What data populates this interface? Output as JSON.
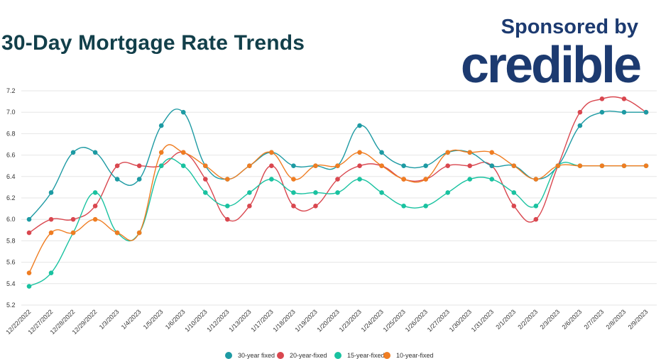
{
  "header": {
    "title": "30-Day Mortgage Rate Trends",
    "sponsor_text": "Sponsored by",
    "brand_name": "credible"
  },
  "colors": {
    "title": "#123f4a",
    "brand": "#1c3a70",
    "grid": "#e6e6e6"
  },
  "chart_data": {
    "type": "line",
    "smooth": true,
    "grid": "horizontal",
    "legend_position": "bottom",
    "categories": [
      "12/22/2022",
      "12/27/2022",
      "12/28/2022",
      "12/29/2022",
      "1/3/2023",
      "1/4/2023",
      "1/5/2023",
      "1/6/2023",
      "1/10/2023",
      "1/12/2023",
      "1/13/2023",
      "1/17/2023",
      "1/18/2023",
      "1/19/2023",
      "1/20/2023",
      "1/23/2023",
      "1/24/2023",
      "1/25/2023",
      "1/26/2023",
      "1/27/2023",
      "1/30/2023",
      "1/31/2023",
      "2/1/2023",
      "2/2/2023",
      "2/3/2023",
      "2/6/2023",
      "2/7/2023",
      "2/8/2023",
      "2/9/2023"
    ],
    "ylim": [
      5.2,
      7.2
    ],
    "yticks": [
      "7.2",
      "7.0",
      "6.8",
      "6.6",
      "6.4",
      "6.2",
      "6.0",
      "5.8",
      "5.6",
      "5.4",
      "5.2"
    ],
    "series": [
      {
        "name": "30-year fixed",
        "color": "#1d9aa3",
        "values": [
          6.0,
          6.25,
          6.625,
          6.625,
          6.375,
          6.375,
          6.875,
          7.0,
          6.5,
          6.375,
          6.5,
          6.625,
          6.5,
          6.5,
          6.5,
          6.875,
          6.625,
          6.5,
          6.5,
          6.625,
          6.625,
          6.5,
          6.5,
          6.375,
          6.5,
          6.875,
          7.0,
          7.0,
          7.0
        ]
      },
      {
        "name": "20-year-fixed",
        "color": "#d9474f",
        "values": [
          5.875,
          6.0,
          6.0,
          6.125,
          6.5,
          6.5,
          6.5,
          6.625,
          6.375,
          6.0,
          6.125,
          6.5,
          6.125,
          6.125,
          6.375,
          6.5,
          6.5,
          6.375,
          6.375,
          6.5,
          6.5,
          6.5,
          6.125,
          6.0,
          6.5,
          7.0,
          7.125,
          7.125,
          7.0
        ]
      },
      {
        "name": "15-year-fixed",
        "color": "#19c2a0",
        "values": [
          5.375,
          5.5,
          5.875,
          6.25,
          5.875,
          5.875,
          6.5,
          6.5,
          6.25,
          6.125,
          6.25,
          6.375,
          6.25,
          6.25,
          6.25,
          6.375,
          6.25,
          6.125,
          6.125,
          6.25,
          6.375,
          6.375,
          6.25,
          6.125,
          6.5,
          6.5,
          6.5,
          6.5,
          6.5
        ]
      },
      {
        "name": "10-year-fixed",
        "color": "#ef7d22",
        "values": [
          5.5,
          5.875,
          5.875,
          6.0,
          5.875,
          5.875,
          6.625,
          6.625,
          6.5,
          6.375,
          6.5,
          6.625,
          6.375,
          6.5,
          6.5,
          6.625,
          6.5,
          6.375,
          6.375,
          6.625,
          6.625,
          6.625,
          6.5,
          6.375,
          6.5,
          6.5,
          6.5,
          6.5,
          6.5
        ]
      }
    ]
  }
}
